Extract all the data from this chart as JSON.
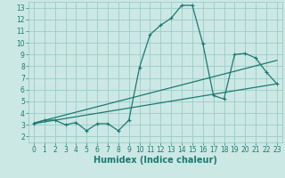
{
  "xlabel": "Humidex (Indice chaleur)",
  "xlim": [
    -0.5,
    23.5
  ],
  "ylim": [
    1.5,
    13.5
  ],
  "xticks": [
    0,
    1,
    2,
    3,
    4,
    5,
    6,
    7,
    8,
    9,
    10,
    11,
    12,
    13,
    14,
    15,
    16,
    17,
    18,
    19,
    20,
    21,
    22,
    23
  ],
  "yticks": [
    2,
    3,
    4,
    5,
    6,
    7,
    8,
    9,
    10,
    11,
    12,
    13
  ],
  "background_color": "#cce8e4",
  "grid_color": "#99ccc8",
  "line_color": "#1a7a72",
  "line1_x": [
    0,
    1,
    2,
    3,
    4,
    5,
    6,
    7,
    8,
    9,
    10,
    11,
    12,
    13,
    14,
    15,
    16,
    17,
    18,
    19,
    20,
    21,
    22,
    23
  ],
  "line1_y": [
    3.1,
    3.4,
    3.4,
    3.0,
    3.2,
    2.5,
    3.1,
    3.1,
    2.5,
    3.4,
    7.9,
    10.7,
    11.5,
    12.1,
    13.2,
    13.2,
    9.9,
    5.5,
    5.2,
    9.0,
    9.1,
    8.7,
    7.5,
    6.5
  ],
  "line2_x": [
    0,
    23
  ],
  "line2_y": [
    3.1,
    6.5
  ],
  "line3_x": [
    0,
    23
  ],
  "line3_y": [
    3.15,
    8.5
  ],
  "tick_fontsize": 5.5,
  "label_fontsize": 7.0
}
